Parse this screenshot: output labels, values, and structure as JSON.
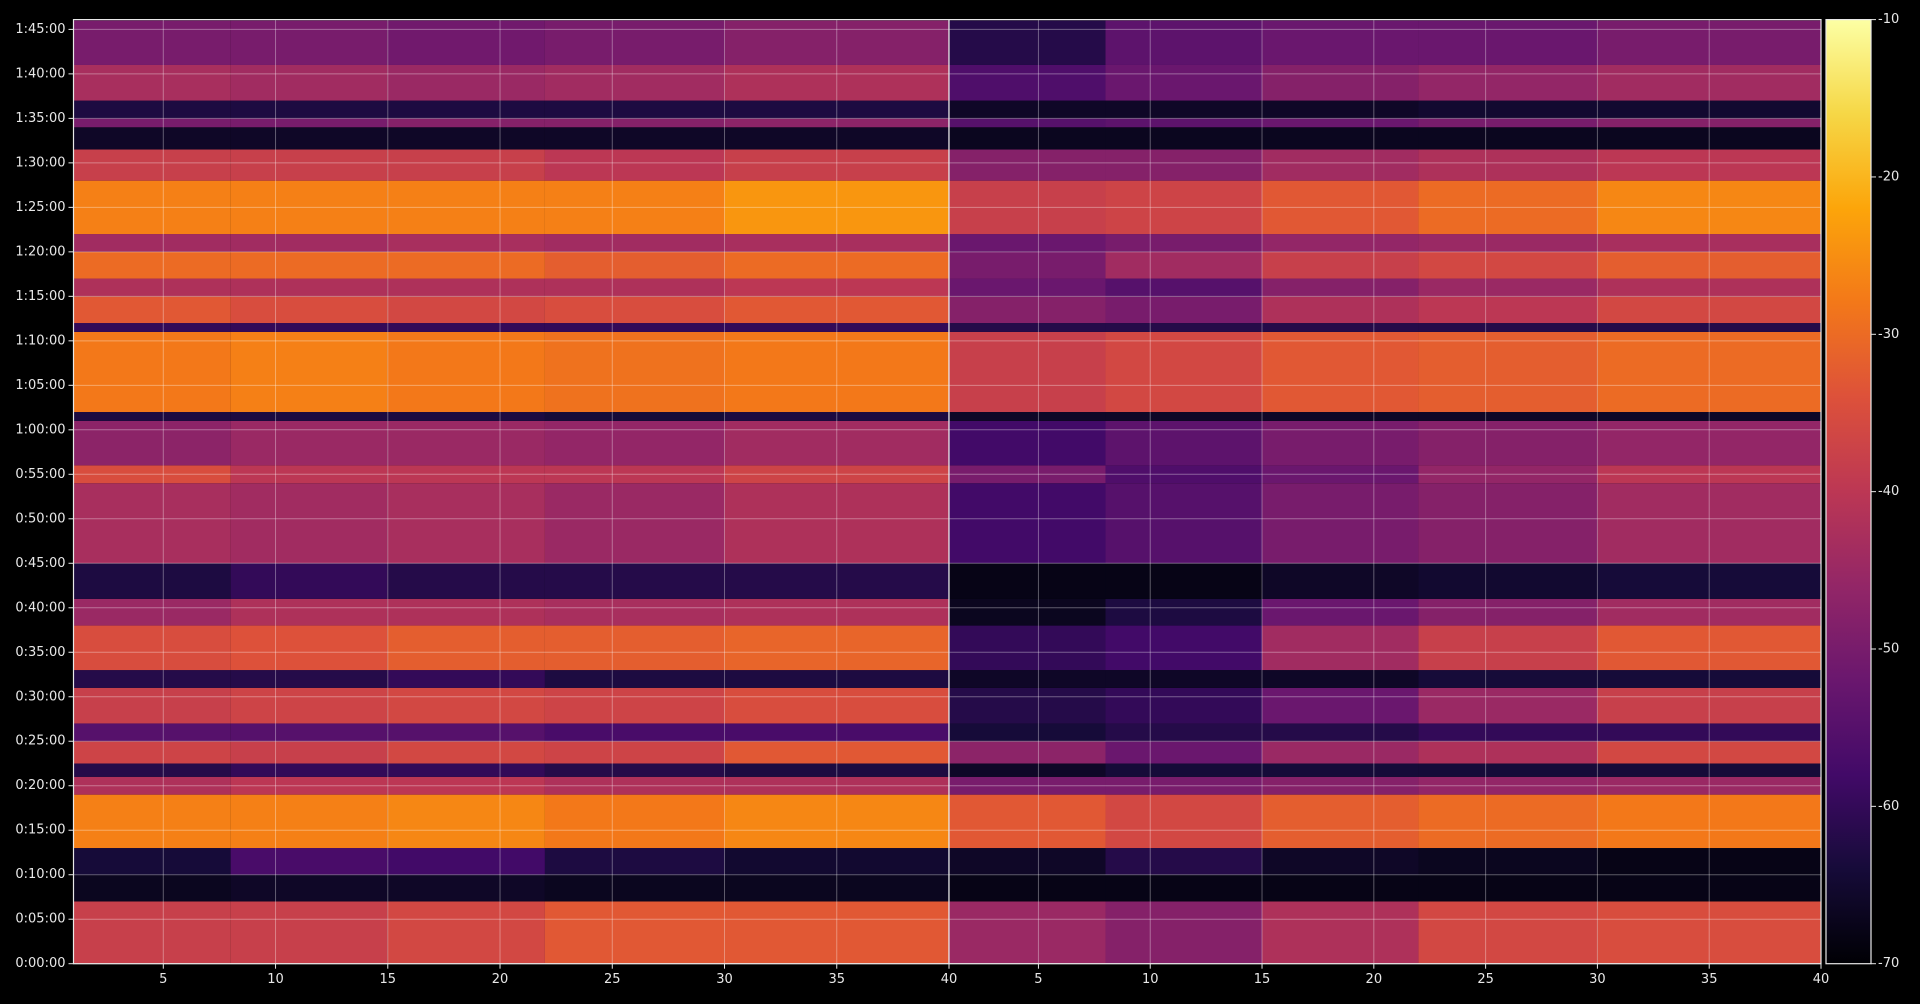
{
  "chart_data": {
    "type": "heatmap",
    "colormap": "inferno",
    "grid": true,
    "clim": [
      -70,
      -10
    ],
    "cticks": [
      -70,
      -60,
      -50,
      -40,
      -30,
      -20,
      -10
    ],
    "ylim": [
      0,
      6366
    ],
    "yticks": [
      {
        "value": 0,
        "label": "0:00:00"
      },
      {
        "value": 300,
        "label": "0:05:00"
      },
      {
        "value": 600,
        "label": "0:10:00"
      },
      {
        "value": 900,
        "label": "0:15:00"
      },
      {
        "value": 1200,
        "label": "0:20:00"
      },
      {
        "value": 1500,
        "label": "0:25:00"
      },
      {
        "value": 1800,
        "label": "0:30:00"
      },
      {
        "value": 2100,
        "label": "0:35:00"
      },
      {
        "value": 2400,
        "label": "0:40:00"
      },
      {
        "value": 2700,
        "label": "0:45:00"
      },
      {
        "value": 3000,
        "label": "0:50:00"
      },
      {
        "value": 3300,
        "label": "0:55:00"
      },
      {
        "value": 3600,
        "label": "1:00:00"
      },
      {
        "value": 3900,
        "label": "1:05:00"
      },
      {
        "value": 4200,
        "label": "1:10:00"
      },
      {
        "value": 4500,
        "label": "1:15:00"
      },
      {
        "value": 4800,
        "label": "1:20:00"
      },
      {
        "value": 5100,
        "label": "1:25:00"
      },
      {
        "value": 5400,
        "label": "1:30:00"
      },
      {
        "value": 5700,
        "label": "1:35:00"
      },
      {
        "value": 6000,
        "label": "1:40:00"
      },
      {
        "value": 6300,
        "label": "1:45:00"
      }
    ],
    "ybins": [
      0,
      420,
      600,
      780,
      1140,
      1260,
      1350,
      1500,
      1620,
      1860,
      1980,
      2280,
      2460,
      2700,
      3240,
      3360,
      3660,
      3720,
      4260,
      4320,
      4500,
      4620,
      4800,
      4920,
      5280,
      5490,
      5640,
      5700,
      5820,
      6060,
      6360
    ],
    "xbins": [
      1,
      8,
      15,
      22,
      30,
      40
    ],
    "panels": [
      {
        "xlim": [
          1,
          40
        ],
        "xticks": [
          5,
          10,
          15,
          20,
          25,
          30,
          35,
          40
        ],
        "values": [
          [
            -38,
            -38,
            -36,
            -33,
            -33
          ],
          [
            -67,
            -66,
            -66,
            -67,
            -67
          ],
          [
            -64,
            -57,
            -58,
            -63,
            -65
          ],
          [
            -27,
            -27,
            -26,
            -28,
            -26
          ],
          [
            -42,
            -40,
            -40,
            -42,
            -42
          ],
          [
            -62,
            -60,
            -60,
            -62,
            -63
          ],
          [
            -37,
            -38,
            -36,
            -37,
            -33
          ],
          [
            -55,
            -55,
            -55,
            -57,
            -57
          ],
          [
            -38,
            -37,
            -36,
            -37,
            -35
          ],
          [
            -62,
            -62,
            -60,
            -63,
            -63
          ],
          [
            -35,
            -34,
            -32,
            -32,
            -31
          ],
          [
            -45,
            -42,
            -42,
            -43,
            -42
          ],
          [
            -63,
            -60,
            -62,
            -62,
            -62
          ],
          [
            -43,
            -44,
            -43,
            -45,
            -42
          ],
          [
            -35,
            -40,
            -40,
            -40,
            -37
          ],
          [
            -47,
            -45,
            -45,
            -46,
            -44
          ],
          [
            -63,
            -63,
            -63,
            -64,
            -63
          ],
          [
            -28,
            -27,
            -28,
            -29,
            -28
          ],
          [
            -60,
            -60,
            -60,
            -60,
            -60
          ],
          [
            -33,
            -35,
            -36,
            -35,
            -33
          ],
          [
            -42,
            -42,
            -42,
            -42,
            -40
          ],
          [
            -30,
            -30,
            -30,
            -32,
            -30
          ],
          [
            -44,
            -44,
            -43,
            -44,
            -43
          ],
          [
            -27,
            -27,
            -27,
            -27,
            -24
          ],
          [
            -38,
            -38,
            -38,
            -40,
            -38
          ],
          [
            -66,
            -66,
            -66,
            -66,
            -66
          ],
          [
            -50,
            -50,
            -48,
            -48,
            -47
          ],
          [
            -63,
            -63,
            -63,
            -63,
            -63
          ],
          [
            -43,
            -44,
            -45,
            -44,
            -42
          ],
          [
            -50,
            -50,
            -51,
            -50,
            -48
          ]
        ]
      },
      {
        "xlim": [
          1,
          40
        ],
        "xticks": [
          5,
          10,
          15,
          20,
          25,
          30,
          35,
          40
        ],
        "values": [
          [
            -45,
            -48,
            -42,
            -36,
            -35
          ],
          [
            -68,
            -68,
            -68,
            -68,
            -68
          ],
          [
            -66,
            -62,
            -66,
            -67,
            -68
          ],
          [
            -33,
            -36,
            -32,
            -30,
            -28
          ],
          [
            -50,
            -50,
            -48,
            -46,
            -45
          ],
          [
            -66,
            -64,
            -64,
            -64,
            -64
          ],
          [
            -47,
            -52,
            -45,
            -42,
            -36
          ],
          [
            -64,
            -62,
            -62,
            -60,
            -60
          ],
          [
            -62,
            -60,
            -52,
            -45,
            -38
          ],
          [
            -66,
            -66,
            -66,
            -64,
            -64
          ],
          [
            -60,
            -58,
            -44,
            -38,
            -33
          ],
          [
            -67,
            -63,
            -52,
            -48,
            -44
          ],
          [
            -68,
            -68,
            -66,
            -65,
            -64
          ],
          [
            -58,
            -55,
            -50,
            -48,
            -44
          ],
          [
            -50,
            -56,
            -52,
            -46,
            -40
          ],
          [
            -58,
            -54,
            -50,
            -48,
            -46
          ],
          [
            -66,
            -66,
            -66,
            -66,
            -66
          ],
          [
            -38,
            -36,
            -33,
            -32,
            -30
          ],
          [
            -62,
            -62,
            -62,
            -62,
            -62
          ],
          [
            -48,
            -50,
            -42,
            -40,
            -36
          ],
          [
            -52,
            -55,
            -48,
            -45,
            -42
          ],
          [
            -50,
            -44,
            -38,
            -36,
            -32
          ],
          [
            -52,
            -50,
            -46,
            -45,
            -43
          ],
          [
            -38,
            -37,
            -33,
            -30,
            -26
          ],
          [
            -48,
            -48,
            -44,
            -42,
            -40
          ],
          [
            -67,
            -67,
            -67,
            -67,
            -67
          ],
          [
            -55,
            -54,
            -52,
            -50,
            -48
          ],
          [
            -66,
            -66,
            -66,
            -65,
            -65
          ],
          [
            -56,
            -52,
            -48,
            -46,
            -44
          ],
          [
            -62,
            -54,
            -52,
            -52,
            -50
          ]
        ]
      }
    ]
  }
}
